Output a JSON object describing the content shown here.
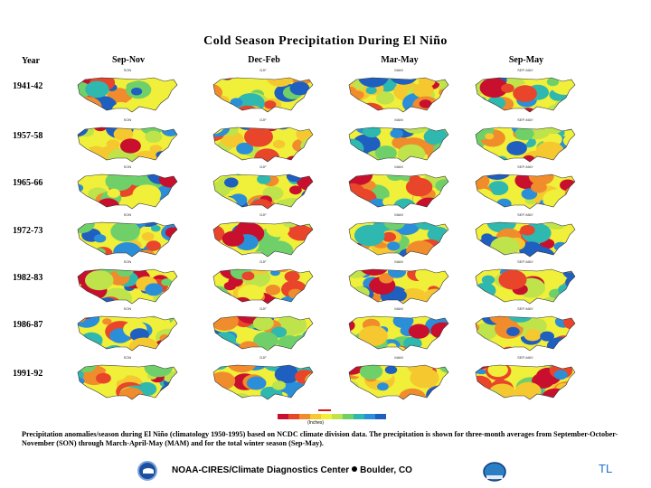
{
  "title": "Cold Season Precipitation During El Niño",
  "year_header": "Year",
  "seasons": [
    "Sep-Nov",
    "Dec-Feb",
    "Mar-May",
    "Sep-May"
  ],
  "years": [
    "1941-42",
    "1957-58",
    "1965-66",
    "1972-73",
    "1982-83",
    "1986-87",
    "1991-92"
  ],
  "map_labels": [
    "SON",
    "DJF",
    "MAM",
    "SEP-MAY"
  ],
  "legend_label": "(Inches)",
  "legend_colors": [
    "#c8102e",
    "#e8452a",
    "#f08c2c",
    "#f5c830",
    "#f0ef3a",
    "#bfe34a",
    "#6fd06a",
    "#2fb8b0",
    "#2a8fd8",
    "#1f5fbf"
  ],
  "caption": "Precipitation anomalies/season during El Niño (climatology 1950-1995) based on NCDC climate division data. The precipitation is shown for three-month averages from September-October-November (SON) through March-April-May (MAM) and for the total winter season (Sep-May).",
  "credit_left": "NOAA-CIRES/Climate Diagnostics Center",
  "credit_right": "Boulder, CO",
  "corner_mark": "TL"
}
